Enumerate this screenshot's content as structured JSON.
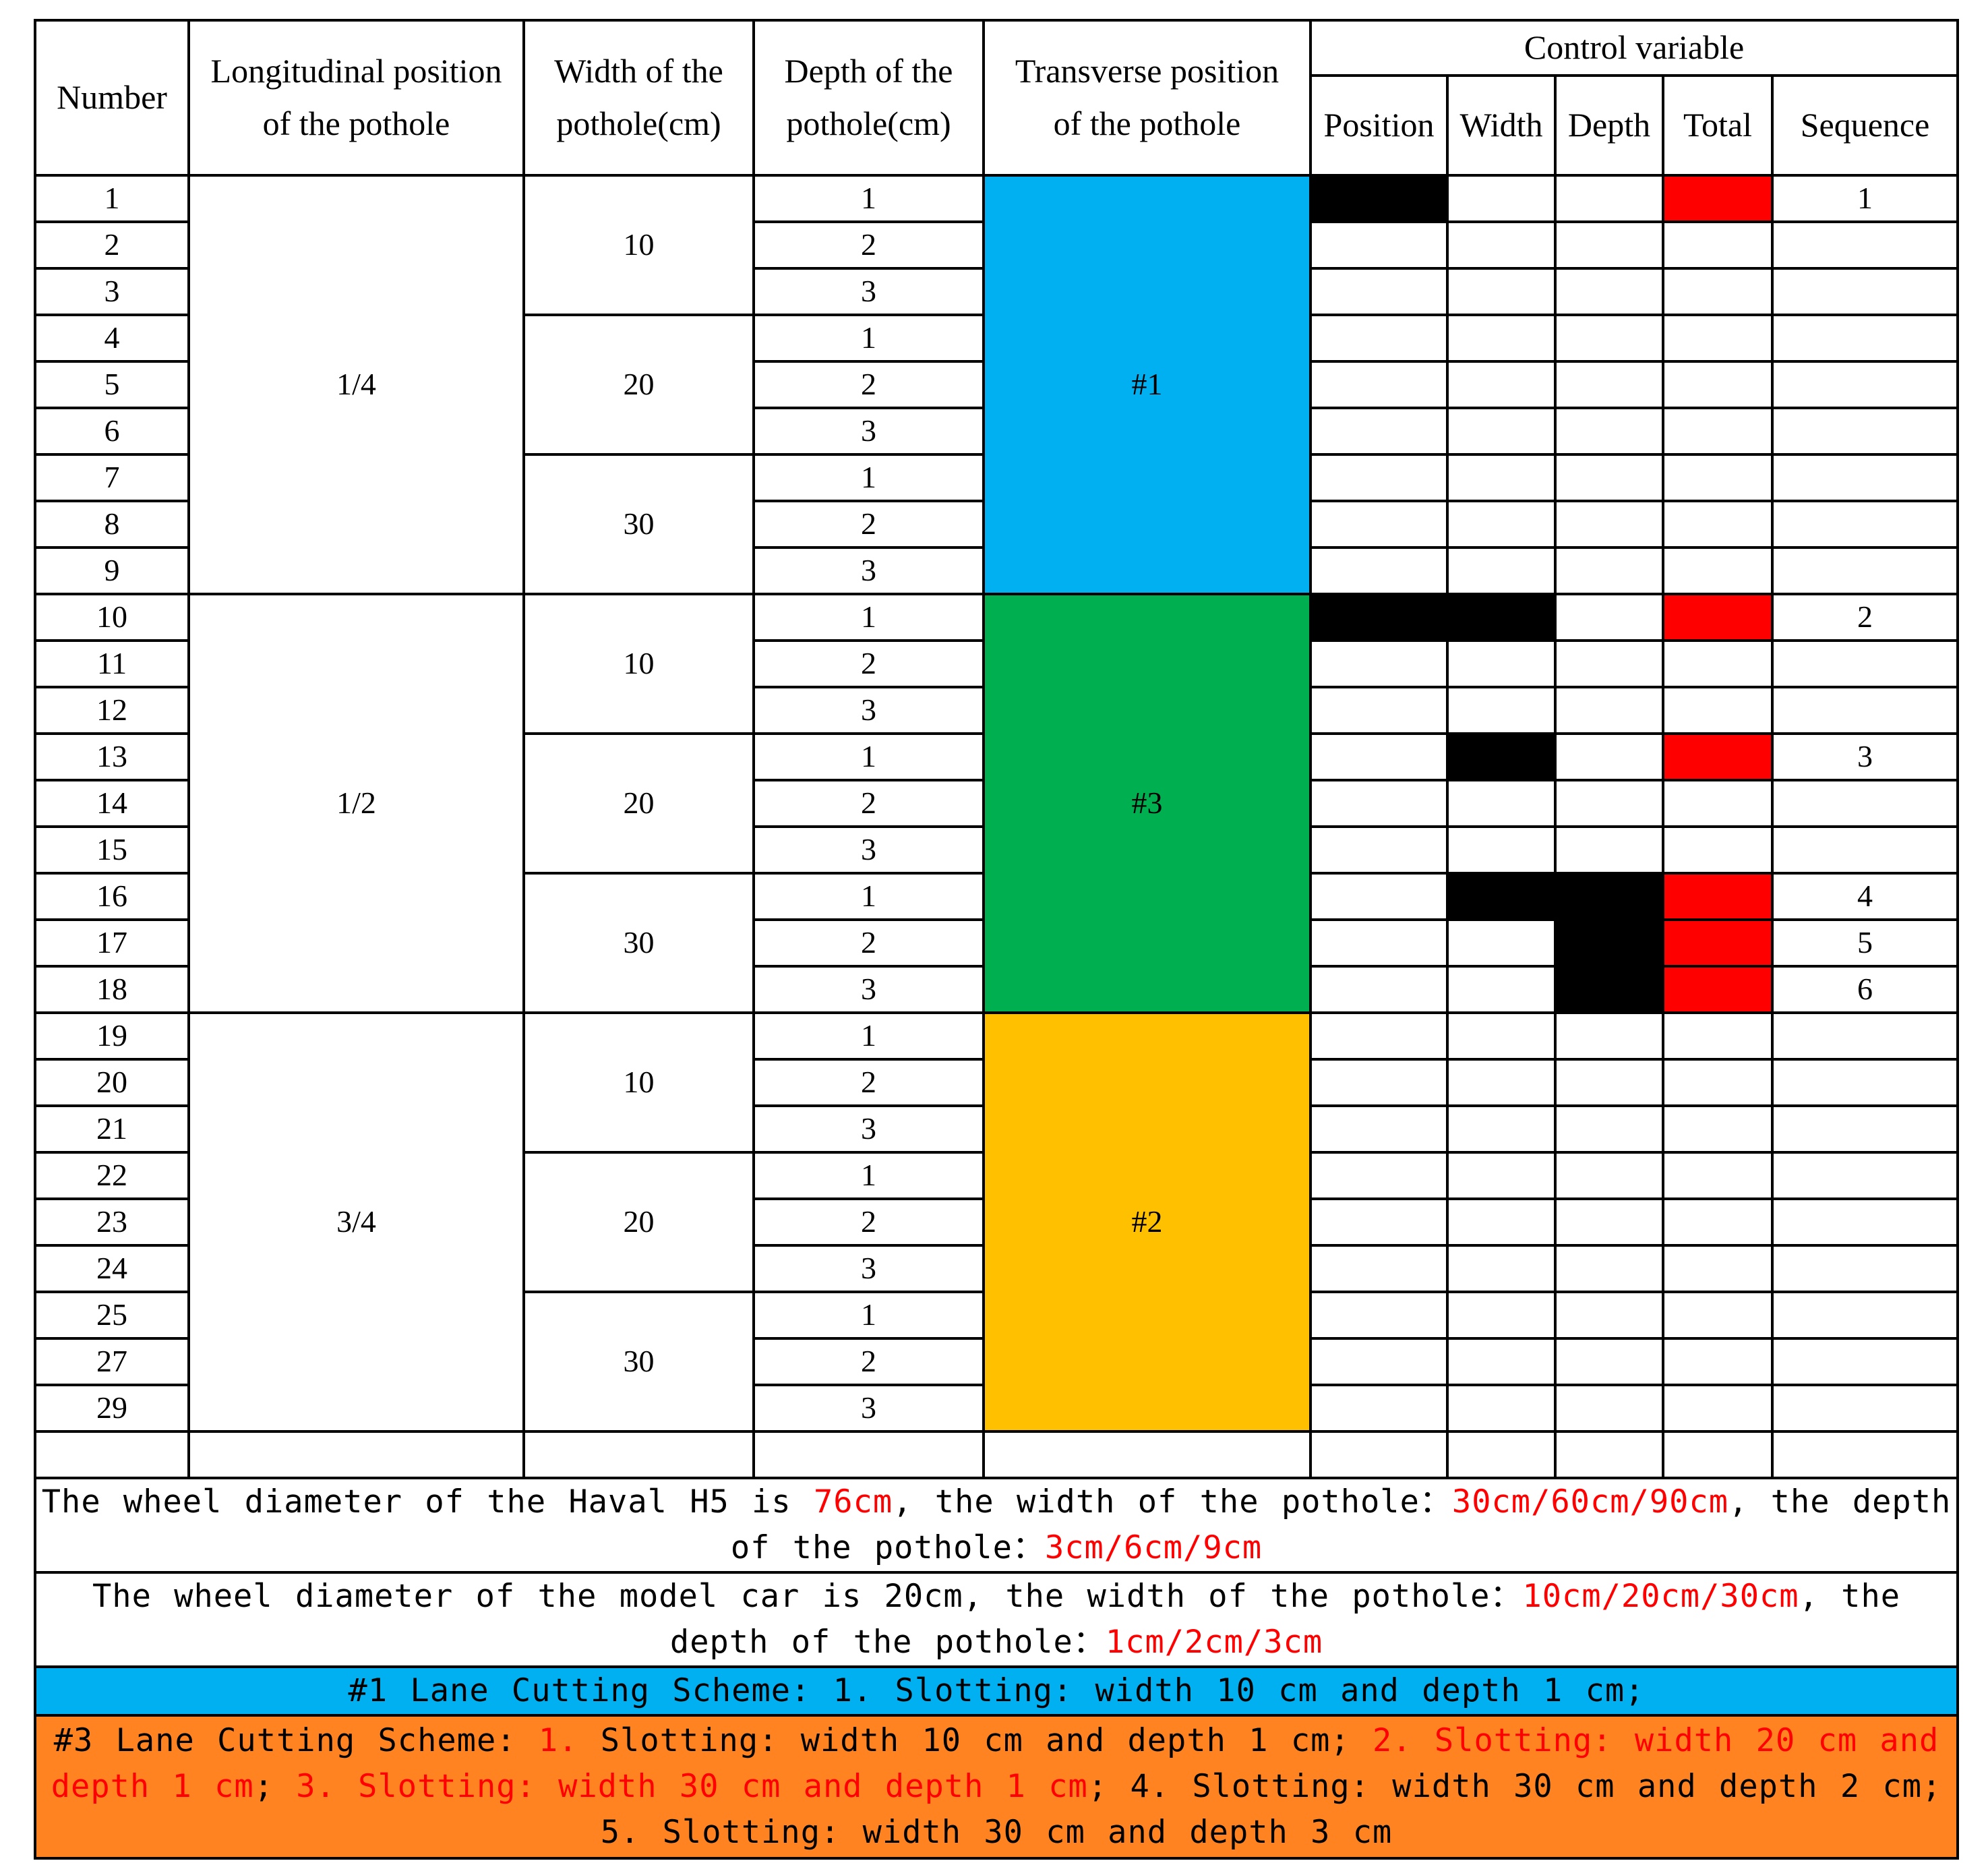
{
  "header": {
    "number": "Number",
    "longitudinal_line1": "Longitudinal position",
    "longitudinal_line2": "of the pothole",
    "width_line1": "Width of the",
    "width_line2": "pothole(cm)",
    "depth_line1": "Depth of the",
    "depth_line2": "pothole(cm)",
    "transverse_line1": "Transverse position",
    "transverse_line2": "of the pothole",
    "control_variable": "Control variable",
    "position": "Position",
    "width": "Width",
    "depth": "Depth",
    "total": "Total",
    "sequence": "Sequence"
  },
  "groups": {
    "longitudinal": [
      "1/4",
      "1/2",
      "3/4"
    ],
    "transverse": [
      "#1",
      "#3",
      "#2"
    ],
    "transverse_colors": [
      "#00b0f0",
      "#00b050",
      "#ffc000"
    ],
    "width": [
      "10",
      "20",
      "30"
    ]
  },
  "rows": [
    {
      "number": "1",
      "depth": "1",
      "seq": "1"
    },
    {
      "number": "2",
      "depth": "2",
      "seq": ""
    },
    {
      "number": "3",
      "depth": "3",
      "seq": ""
    },
    {
      "number": "4",
      "depth": "1",
      "seq": ""
    },
    {
      "number": "5",
      "depth": "2",
      "seq": ""
    },
    {
      "number": "6",
      "depth": "3",
      "seq": ""
    },
    {
      "number": "7",
      "depth": "1",
      "seq": ""
    },
    {
      "number": "8",
      "depth": "2",
      "seq": ""
    },
    {
      "number": "9",
      "depth": "3",
      "seq": ""
    },
    {
      "number": "10",
      "depth": "1",
      "seq": "2"
    },
    {
      "number": "11",
      "depth": "2",
      "seq": ""
    },
    {
      "number": "12",
      "depth": "3",
      "seq": ""
    },
    {
      "number": "13",
      "depth": "1",
      "seq": "3"
    },
    {
      "number": "14",
      "depth": "2",
      "seq": ""
    },
    {
      "number": "15",
      "depth": "3",
      "seq": ""
    },
    {
      "number": "16",
      "depth": "1",
      "seq": "4"
    },
    {
      "number": "17",
      "depth": "2",
      "seq": "5"
    },
    {
      "number": "18",
      "depth": "3",
      "seq": "6"
    },
    {
      "number": "19",
      "depth": "1",
      "seq": ""
    },
    {
      "number": "20",
      "depth": "2",
      "seq": ""
    },
    {
      "number": "21",
      "depth": "3",
      "seq": ""
    },
    {
      "number": "22",
      "depth": "1",
      "seq": ""
    },
    {
      "number": "23",
      "depth": "2",
      "seq": ""
    },
    {
      "number": "24",
      "depth": "3",
      "seq": ""
    },
    {
      "number": "25",
      "depth": "1",
      "seq": ""
    },
    {
      "number": "27",
      "depth": "2",
      "seq": ""
    },
    {
      "number": "29",
      "depth": "3",
      "seq": ""
    }
  ],
  "control_marks": {
    "position": [
      true,
      false,
      false,
      false,
      false,
      false,
      false,
      false,
      false,
      true,
      false,
      false,
      false,
      false,
      false,
      false,
      false,
      false,
      false,
      false,
      false,
      false,
      false,
      false,
      false,
      false,
      false
    ],
    "width": [
      false,
      false,
      false,
      false,
      false,
      false,
      false,
      false,
      false,
      true,
      false,
      false,
      true,
      false,
      false,
      true,
      false,
      false,
      false,
      false,
      false,
      false,
      false,
      false,
      false,
      false,
      false
    ],
    "depth": [
      false,
      false,
      false,
      false,
      false,
      false,
      false,
      false,
      false,
      false,
      false,
      false,
      false,
      false,
      false,
      true,
      true,
      true,
      false,
      false,
      false,
      false,
      false,
      false,
      false,
      false,
      false
    ],
    "total": [
      true,
      false,
      false,
      false,
      false,
      false,
      false,
      false,
      false,
      true,
      false,
      false,
      true,
      false,
      false,
      true,
      true,
      true,
      false,
      false,
      false,
      false,
      false,
      false,
      false,
      false,
      false
    ]
  },
  "notes": {
    "haval": {
      "a": "The wheel diameter of the Haval H5 is ",
      "b": "76cm",
      "c": ", the width of the pothole：",
      "d": "30cm/60cm/90cm",
      "e": ", the depth of the pothole：",
      "f": "3cm/6cm/9cm"
    },
    "model": {
      "a": "The wheel diameter of the model car is 20cm, the width of the pothole：",
      "b": "10cm/20cm/30cm",
      "c": ", the depth of the pothole：",
      "d": "1cm/2cm/3cm"
    },
    "lane1": "#1 Lane Cutting Scheme: 1. Slotting: width 10 cm and depth 1 cm;",
    "lane3": {
      "a": "#3 Lane Cutting Scheme: ",
      "b": "1.",
      "c": " Slotting: width 10 cm and depth 1 cm; ",
      "d": "2. Slotting: width 20 cm and depth 1 cm",
      "e": "; ",
      "f": "3. Slotting: width 30 cm and depth 1 cm",
      "g": "; 4. Slotting: width 30 cm and depth 2 cm; 5. Slotting: width 30 cm and depth 3 cm"
    }
  },
  "colors": {
    "mark": "#000000",
    "total_mark": "#ff0000",
    "highlight_text": "#ff0000",
    "lane1_bg": "#00b0f0",
    "lane3_bg": "#ff8320"
  }
}
